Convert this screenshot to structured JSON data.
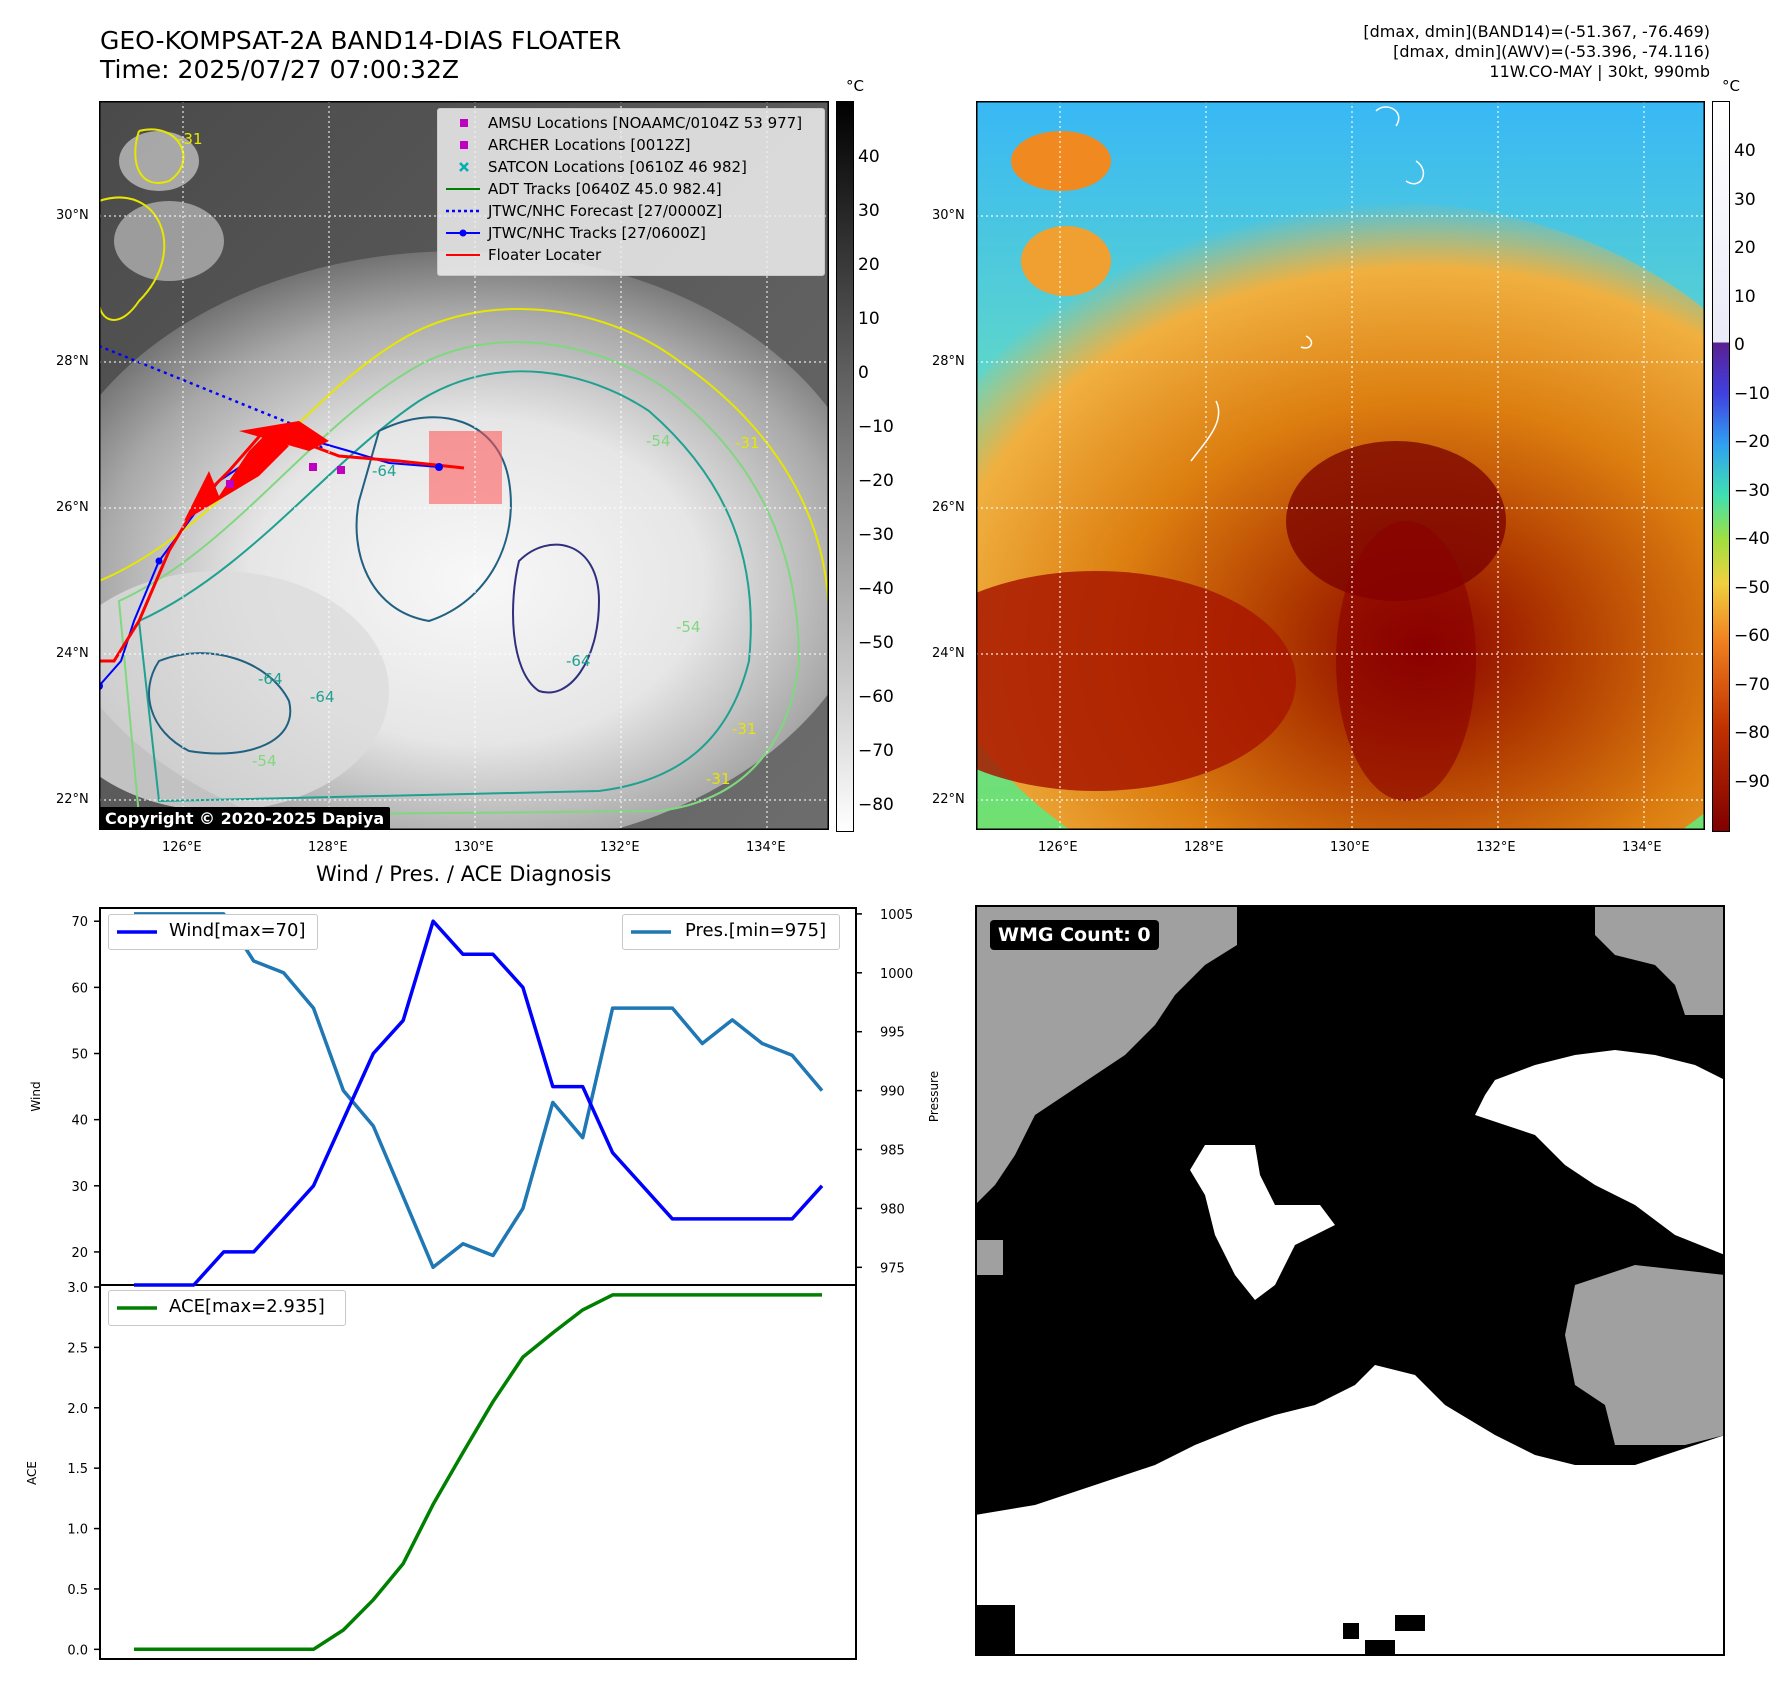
{
  "header": {
    "title_line1": "GEO-KOMPSAT-2A BAND14-DIAS FLOATER",
    "title_line2": "Time: 2025/07/27 07:00:32Z",
    "right_line1": "[dmax, dmin](BAND14)=(-51.367, -76.469)",
    "right_line2": "[dmax, dmin](AWV)=(-53.396, -74.116)",
    "right_line3": "11W.CO-MAY | 30kt, 990mb"
  },
  "maps": {
    "lat_labels": [
      "30°N",
      "28°N",
      "26°N",
      "24°N",
      "22°N"
    ],
    "lon_labels": [
      "126°E",
      "128°E",
      "130°E",
      "132°E",
      "134°E"
    ],
    "left_colorbar": {
      "unit": "°C",
      "ticks": [
        "40",
        "30",
        "20",
        "10",
        "0",
        "−10",
        "−20",
        "−30",
        "−40",
        "−50",
        "−60",
        "−70",
        "−80"
      ]
    },
    "right_colorbar": {
      "unit": "°C",
      "ticks": [
        "40",
        "30",
        "20",
        "10",
        "0",
        "−10",
        "−20",
        "−30",
        "−40",
        "−50",
        "−60",
        "−70",
        "−80",
        "−90"
      ]
    },
    "contour_labels": [
      "-31",
      "-31",
      "-54",
      "-64",
      "-64",
      "-64",
      "-54",
      "-31",
      "-31",
      "-54",
      "-64"
    ],
    "legend": [
      {
        "label": "AMSU Locations [NOAAMC/0104Z 53 977]",
        "color": "#c000c0",
        "symbol": "square"
      },
      {
        "label": "ARCHER Locations [0012Z]",
        "color": "#c000c0",
        "symbol": "square"
      },
      {
        "label": "SATCON Locations [0610Z 46 982]",
        "color": "#00b0b0",
        "symbol": "x"
      },
      {
        "label": "ADT Tracks [0640Z 45.0 982.4]",
        "color": "#008000",
        "symbol": "line"
      },
      {
        "label": "JTWC/NHC Forecast [27/0000Z]",
        "color": "#0000ff",
        "symbol": "dotted"
      },
      {
        "label": "JTWC/NHC Tracks [27/0600Z]",
        "color": "#0000ff",
        "symbol": "line-dot"
      },
      {
        "label": "Floater Locater",
        "color": "#ff0000",
        "symbol": "line"
      }
    ],
    "copyright": "Copyright © 2020-2025 Dapiya"
  },
  "chart_data": [
    {
      "type": "line",
      "title": "Wind / Pres. / ACE Diagnosis",
      "ylabel": "Wind",
      "ylabel_right": "Pressure",
      "ylim": [
        15,
        72
      ],
      "ylim_right": [
        973.5,
        1005.5
      ],
      "yticks": [
        20,
        30,
        40,
        50,
        60,
        70
      ],
      "yticks_right": [
        975,
        980,
        985,
        990,
        995,
        1000,
        1005
      ],
      "series": [
        {
          "name": "Wind[max=70]",
          "color": "#0000ff",
          "axis": "left",
          "values": [
            15,
            15,
            15,
            20,
            20,
            25,
            30,
            40,
            50,
            55,
            70,
            65,
            65,
            60,
            45,
            45,
            35,
            30,
            25,
            25,
            25,
            25,
            25,
            30
          ]
        },
        {
          "name": "Pres.[min=975]",
          "color": "#1f77b4",
          "axis": "right",
          "values": [
            1005,
            1005,
            1005,
            1005,
            1001,
            1000,
            997,
            990,
            987,
            981,
            975,
            977,
            976,
            980,
            989,
            986,
            997,
            997,
            997,
            994,
            996,
            994,
            993,
            990
          ]
        }
      ]
    },
    {
      "type": "line",
      "ylabel": "ACE",
      "ylim": [
        -0.08,
        3.0
      ],
      "yticks": [
        0.0,
        0.5,
        1.0,
        1.5,
        2.0,
        2.5,
        3.0
      ],
      "series": [
        {
          "name": "ACE[max=2.935]",
          "color": "#008000",
          "values": [
            0,
            0,
            0,
            0,
            0,
            0,
            0,
            0.16,
            0.41,
            0.71,
            1.2,
            1.63,
            2.05,
            2.42,
            2.62,
            2.81,
            2.935,
            2.935,
            2.935,
            2.935,
            2.935,
            2.935,
            2.935,
            2.935
          ]
        }
      ]
    }
  ],
  "wmg": {
    "badge": "WMG Count: 0"
  }
}
